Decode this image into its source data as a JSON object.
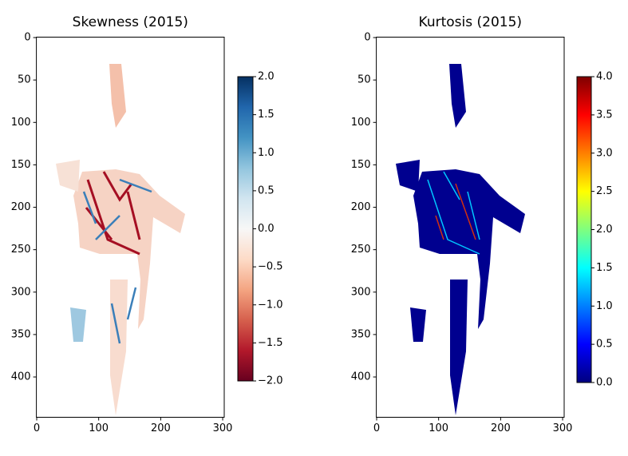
{
  "chart_data": [
    {
      "type": "image",
      "title": "Skewness (2015)",
      "xlim": [
        -0.5,
        302.5
      ],
      "ylim": [
        447.5,
        -0.5
      ],
      "xticks": [
        0,
        100,
        200,
        300
      ],
      "yticks": [
        0,
        50,
        100,
        150,
        200,
        250,
        300,
        350,
        400
      ],
      "colorbar": {
        "lim": [
          -2,
          2
        ],
        "ticks": [
          {
            "value": -2,
            "label": "−2.0"
          },
          {
            "value": -1.5,
            "label": "−1.5"
          },
          {
            "value": -1,
            "label": "−1.0"
          },
          {
            "value": -0.5,
            "label": "−0.5"
          },
          {
            "value": 0,
            "label": "0.0"
          },
          {
            "value": 0.5,
            "label": "0.5"
          },
          {
            "value": 1,
            "label": "1.0"
          },
          {
            "value": 1.5,
            "label": "1.5"
          },
          {
            "value": 2,
            "label": "2.0"
          }
        ],
        "colors": [
          "#67001f",
          "#b2182b",
          "#d6604d",
          "#f4a582",
          "#fddbc7",
          "#f7f7f7",
          "#d1e5f0",
          "#92c5de",
          "#4393c3",
          "#2166ac",
          "#053061"
        ]
      }
    },
    {
      "type": "image",
      "title": "Kurtosis (2015)",
      "xlim": [
        -0.5,
        302.5
      ],
      "ylim": [
        447.5,
        -0.5
      ],
      "xticks": [
        0,
        100,
        200,
        300
      ],
      "yticks": [
        0,
        50,
        100,
        150,
        200,
        250,
        300,
        350,
        400
      ],
      "colorbar": {
        "lim": [
          0,
          4
        ],
        "ticks": [
          {
            "value": 0,
            "label": "0.0"
          },
          {
            "value": 0.5,
            "label": "0.5"
          },
          {
            "value": 1,
            "label": "1.0"
          },
          {
            "value": 1.5,
            "label": "1.5"
          },
          {
            "value": 2,
            "label": "2.0"
          },
          {
            "value": 2.5,
            "label": "2.5"
          },
          {
            "value": 3,
            "label": "3.0"
          },
          {
            "value": 3.5,
            "label": "3.5"
          },
          {
            "value": 4,
            "label": "4.0"
          }
        ],
        "colors": [
          "#00007f",
          "#0000ff",
          "#007fff",
          "#00ffff",
          "#7fff7f",
          "#ffff00",
          "#ff7f00",
          "#ff0000",
          "#7f0000"
        ]
      }
    }
  ]
}
